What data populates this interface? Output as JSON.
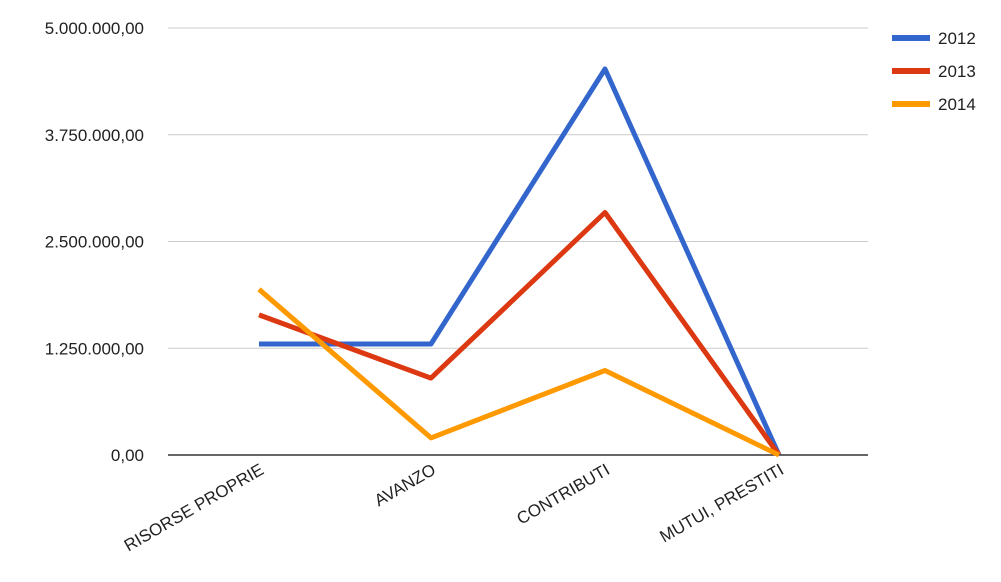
{
  "chart_data": {
    "type": "line",
    "categories": [
      "RISORSE PROPRIE",
      "AVANZO",
      "CONTRIBUTI",
      "MUTUI, PRESTITI"
    ],
    "series": [
      {
        "name": "2012",
        "color": "#3366cc",
        "values": [
          1300000,
          1300000,
          4520000,
          0
        ]
      },
      {
        "name": "2013",
        "color": "#dc3912",
        "values": [
          1640000,
          900000,
          2840000,
          0
        ]
      },
      {
        "name": "2014",
        "color": "#ff9900",
        "values": [
          1940000,
          200000,
          990000,
          0
        ]
      }
    ],
    "yticks": [
      "0,00",
      "1.250.000,00",
      "2.500.000,00",
      "3.750.000,00",
      "5.000.000,00"
    ],
    "ylim": [
      0,
      5000000
    ],
    "title": "",
    "xlabel": "",
    "ylabel": "",
    "grid": true,
    "legend_position": "right"
  }
}
